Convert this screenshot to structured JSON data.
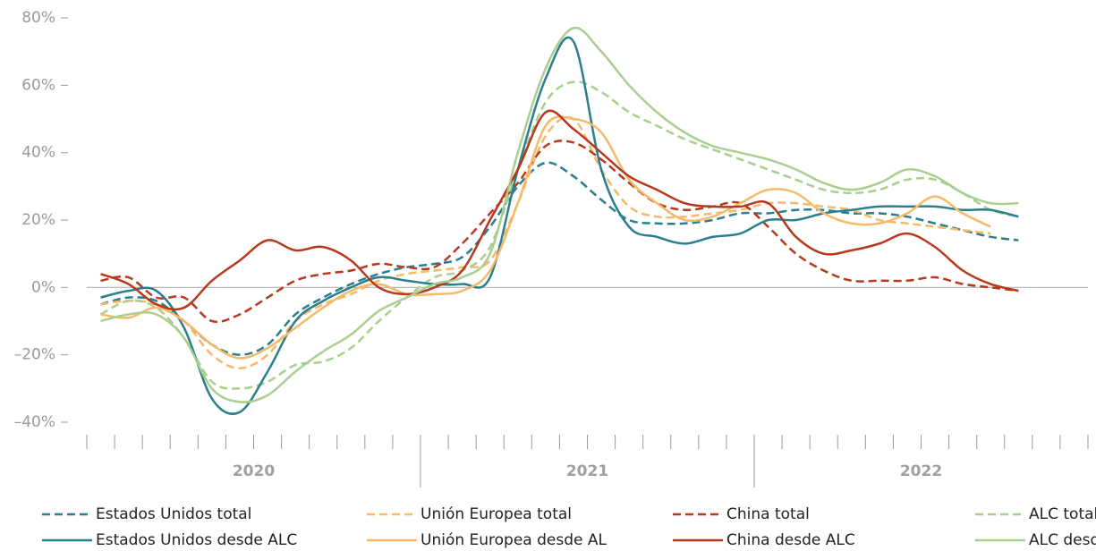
{
  "chart_data": {
    "type": "line",
    "categories": [
      null,
      null,
      null,
      null,
      null,
      null,
      null,
      null,
      null,
      null,
      null,
      null,
      null,
      null,
      null,
      null,
      null,
      null,
      null,
      null,
      null,
      null,
      null,
      null,
      null,
      null,
      null,
      null,
      null,
      null,
      null,
      null,
      null,
      null,
      null,
      null
    ],
    "year_labels": [
      "2020",
      "2021",
      "2022"
    ],
    "ylim": [
      -40,
      80
    ],
    "yticks": [
      {
        "value": -40,
        "label": "–40%"
      },
      {
        "value": -20,
        "label": "–20%"
      },
      {
        "value": 0,
        "label": "0%"
      },
      {
        "value": 20,
        "label": "20%"
      },
      {
        "value": 40,
        "label": "40%"
      },
      {
        "value": 60,
        "label": "60%"
      },
      {
        "value": 80,
        "label": "80%"
      }
    ],
    "series": [
      {
        "name": "Estados Unidos total",
        "color": "#2a7f8e",
        "style": "dashed",
        "values": [
          -5,
          -3,
          -4,
          -10,
          -17,
          -20,
          -17,
          -8,
          -3,
          1,
          4,
          6,
          7,
          9,
          18,
          30,
          37,
          33,
          26,
          20,
          19,
          19,
          20,
          22,
          22,
          23,
          23,
          22,
          22,
          21,
          19,
          17,
          15,
          14,
          null,
          null
        ]
      },
      {
        "name": "Unión Europea total",
        "color": "#f5b96a",
        "style": "dashed",
        "values": [
          -5,
          -4,
          -5,
          -10,
          -20,
          -24,
          -20,
          -10,
          -5,
          -2,
          2,
          4,
          5,
          6,
          8,
          25,
          45,
          50,
          35,
          24,
          21,
          21,
          22,
          23,
          25,
          25,
          24,
          23,
          20,
          19,
          18,
          17,
          16,
          null,
          null,
          null
        ]
      },
      {
        "name": "China total",
        "color": "#b8381c",
        "style": "dashed",
        "values": [
          2,
          3,
          -3,
          -3,
          -10,
          -8,
          -3,
          2,
          4,
          5,
          7,
          6,
          6,
          13,
          22,
          31,
          42,
          43,
          38,
          31,
          25,
          23,
          24,
          25,
          18,
          10,
          5,
          2,
          2,
          2,
          3,
          1,
          0,
          -1,
          null,
          null
        ]
      },
      {
        "name": "ALC total",
        "color": "#a9ce8e",
        "style": "dashed",
        "values": [
          -8,
          -4,
          -6,
          -15,
          -28,
          -30,
          -28,
          -23,
          -22,
          -18,
          -10,
          -3,
          3,
          5,
          12,
          35,
          55,
          61,
          58,
          52,
          48,
          44,
          41,
          38,
          35,
          32,
          29,
          28,
          29,
          32,
          32,
          28,
          23,
          21,
          null,
          null
        ]
      },
      {
        "name": "Estados Unidos desde ALC",
        "color": "#2a7f8e",
        "style": "solid",
        "values": [
          -3,
          -1,
          -1,
          -12,
          -33,
          -37,
          -25,
          -10,
          -4,
          0,
          3,
          2,
          1,
          1,
          3,
          35,
          62,
          73,
          35,
          18,
          15,
          13,
          15,
          16,
          20,
          20,
          22,
          23,
          24,
          24,
          24,
          23,
          23,
          21,
          null,
          null
        ]
      },
      {
        "name": "Unión Europea desde AL",
        "color": "#f5b96a",
        "style": "solid",
        "values": [
          -8,
          -9,
          -6,
          -10,
          -17,
          -21,
          -18,
          -12,
          -6,
          -1,
          1,
          -2,
          -2,
          -1,
          5,
          25,
          48,
          50,
          46,
          32,
          25,
          20,
          21,
          25,
          29,
          28,
          22,
          19,
          19,
          22,
          27,
          22,
          18,
          null,
          null,
          null
        ]
      },
      {
        "name": "China desde ALC",
        "color": "#b8381c",
        "style": "solid",
        "values": [
          4,
          1,
          -5,
          -6,
          2,
          8,
          14,
          11,
          12,
          8,
          0,
          -2,
          0,
          5,
          20,
          35,
          52,
          47,
          40,
          33,
          29,
          25,
          24,
          24,
          25,
          15,
          10,
          11,
          13,
          16,
          12,
          5,
          1,
          -1,
          null,
          null
        ]
      },
      {
        "name": "ALC desde ALC",
        "color": "#a9ce8e",
        "style": "solid",
        "values": [
          -10,
          -8,
          -8,
          -15,
          -30,
          -34,
          -32,
          -25,
          -19,
          -14,
          -7,
          -3,
          1,
          3,
          10,
          40,
          65,
          77,
          70,
          60,
          52,
          46,
          42,
          40,
          38,
          35,
          31,
          29,
          31,
          35,
          33,
          28,
          25,
          25,
          null,
          null
        ]
      }
    ]
  }
}
